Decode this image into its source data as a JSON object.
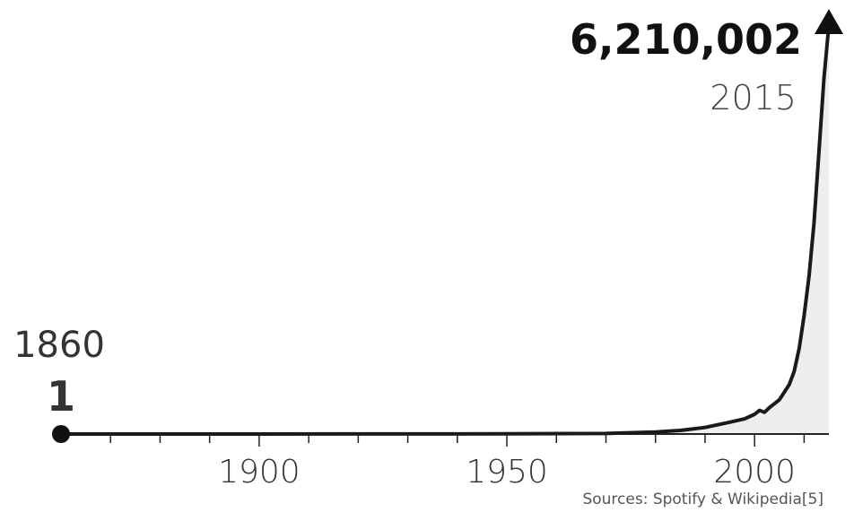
{
  "chart_data": {
    "type": "area",
    "x": [
      1860,
      1900,
      1950,
      1970,
      1980,
      1985,
      1990,
      1995,
      1998,
      2000,
      2001,
      2002,
      2003,
      2005,
      2007,
      2008,
      2009,
      2010,
      2011,
      2012,
      2013,
      2014,
      2015
    ],
    "y": [
      1,
      150,
      2500,
      8000,
      30000,
      55000,
      100000,
      180000,
      230000,
      300000,
      360000,
      330000,
      400000,
      520000,
      750000,
      950000,
      1300000,
      1800000,
      2400000,
      3200000,
      4300000,
      5400000,
      6210002
    ],
    "xlim": [
      1860,
      2015
    ],
    "ylim": [
      0,
      6210002
    ],
    "xticks": [
      1900,
      1950,
      2000
    ],
    "start": {
      "year_label": "1860",
      "value_label": "1"
    },
    "end": {
      "value_label": "6,210,002",
      "year_label": "2015"
    },
    "source": "Sources: Spotify & Wikipedia[5]",
    "colors": {
      "line": "#1a1a1a",
      "area": "#eeeeee",
      "axis": "#222222"
    }
  }
}
